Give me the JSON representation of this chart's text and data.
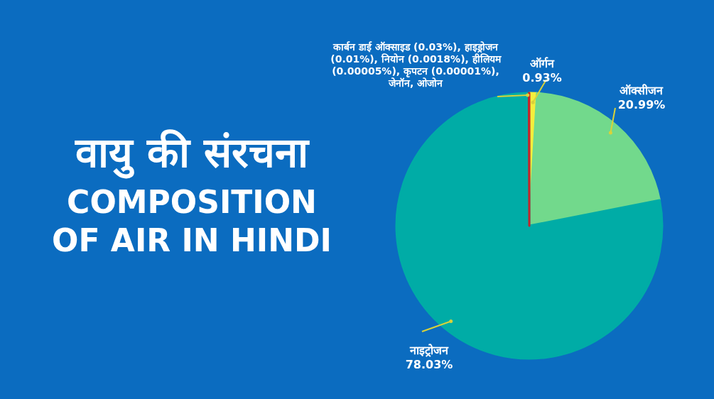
{
  "chart_data": {
    "type": "pie",
    "title": "वायु की संरचना",
    "subtitle": "COMPOSITION OF AIR IN HINDI",
    "categories": [
      "ऑर्गन",
      "ऑक्सीजन",
      "नाइट्रोजन",
      "कार्बन डाई ऑक्साइड (0.03%), हाइड्रोजन (0.01%), नियोन (0.0018%), हीलियम (0.00005%), कृपटन (0.00001%), जेनॉन, ओजोन"
    ],
    "values": [
      0.93,
      20.99,
      78.03,
      0.05
    ],
    "colors": [
      "#f4ee3c",
      "#72d98c",
      "#00aca6",
      "#c3272b"
    ],
    "value_labels": [
      "0.93%",
      "20.99%",
      "78.03%",
      null
    ]
  }
}
